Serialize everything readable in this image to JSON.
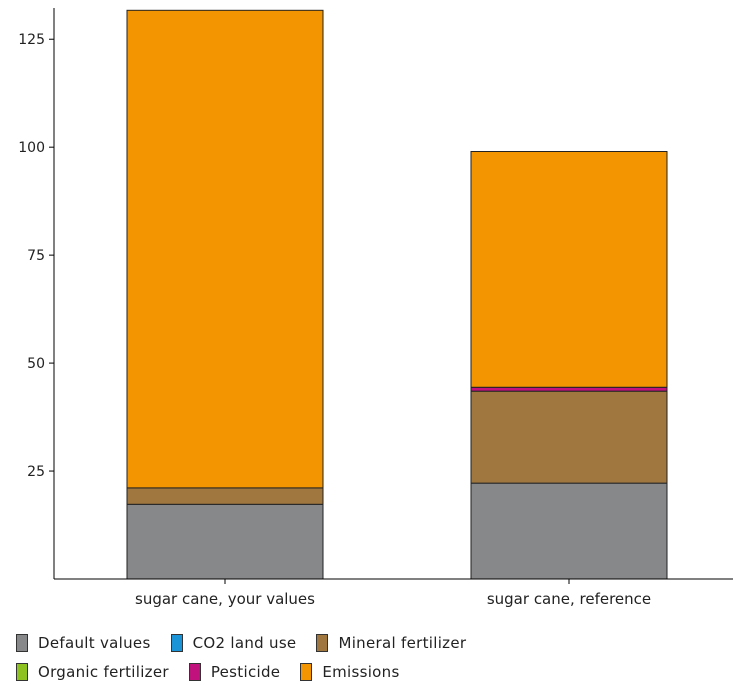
{
  "chart_data": {
    "type": "bar",
    "stacked": true,
    "categories": [
      "sugar cane, your values",
      "sugar cane, reference"
    ],
    "series": [
      {
        "name": "Default values",
        "color": "#87888a",
        "values": [
          17.3,
          22.2
        ]
      },
      {
        "name": "CO2 land use",
        "color": "#1a94d6",
        "values": [
          0,
          0
        ]
      },
      {
        "name": "Mineral fertilizer",
        "color": "#a0773f",
        "values": [
          3.8,
          21.3
        ]
      },
      {
        "name": "Organic fertilizer",
        "color": "#8dc21f",
        "values": [
          0,
          0
        ]
      },
      {
        "name": "Pesticide",
        "color": "#c0117c",
        "values": [
          0,
          0.9
        ]
      },
      {
        "name": "Emissions",
        "color": "#f29500",
        "values": [
          110.6,
          54.6
        ]
      }
    ],
    "yticks": [
      25,
      50,
      75,
      100,
      125
    ],
    "ylim": [
      0,
      132
    ],
    "xlabel": "",
    "ylabel": "",
    "grid": false,
    "legend_position": "bottom"
  }
}
